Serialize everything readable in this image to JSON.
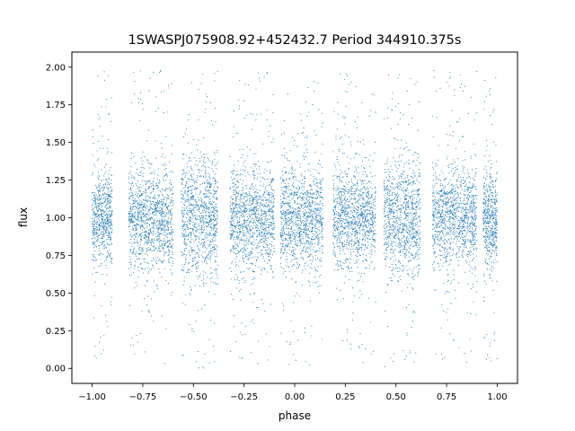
{
  "chart_data": {
    "type": "scatter",
    "title": "1SWASPJ075908.92+452432.7 Period 344910.375s",
    "xlabel": "phase",
    "ylabel": "flux",
    "xlim": [
      -1.1,
      1.1
    ],
    "ylim": [
      -0.1,
      2.1
    ],
    "xticks": [
      -1.0,
      -0.75,
      -0.5,
      -0.25,
      0.0,
      0.25,
      0.5,
      0.75,
      1.0
    ],
    "xtick_labels": [
      "−1.00",
      "−0.75",
      "−0.50",
      "−0.25",
      "0.00",
      "0.25",
      "0.50",
      "0.75",
      "1.00"
    ],
    "yticks": [
      0.0,
      0.25,
      0.5,
      0.75,
      1.0,
      1.25,
      1.5,
      1.75,
      2.0
    ],
    "ytick_labels": [
      "0.00",
      "0.25",
      "0.50",
      "0.75",
      "1.00",
      "1.25",
      "1.50",
      "1.75",
      "2.00"
    ],
    "grid": false,
    "legend": "none",
    "marker_color": "#1f77b4",
    "series": [
      {
        "clusters": [
          {
            "x_range": [
              -1.0,
              -0.9
            ],
            "core_flux": [
              0.65,
              1.35
            ],
            "flux_extent": [
              0.03,
              1.97
            ]
          },
          {
            "x_range": [
              -0.82,
              -0.6
            ],
            "core_flux": [
              0.62,
              1.4
            ],
            "flux_extent": [
              0.02,
              1.98
            ]
          },
          {
            "x_range": [
              -0.56,
              -0.38
            ],
            "core_flux": [
              0.6,
              1.5
            ],
            "flux_extent": [
              0.0,
              1.98
            ]
          },
          {
            "x_range": [
              -0.32,
              -0.1
            ],
            "core_flux": [
              0.62,
              1.38
            ],
            "flux_extent": [
              0.02,
              1.98
            ]
          },
          {
            "x_range": [
              -0.07,
              0.14
            ],
            "core_flux": [
              0.6,
              1.4
            ],
            "flux_extent": [
              0.02,
              1.95
            ]
          },
          {
            "x_range": [
              0.19,
              0.4
            ],
            "core_flux": [
              0.62,
              1.4
            ],
            "flux_extent": [
              0.02,
              1.98
            ]
          },
          {
            "x_range": [
              0.44,
              0.62
            ],
            "core_flux": [
              0.6,
              1.5
            ],
            "flux_extent": [
              0.0,
              1.98
            ]
          },
          {
            "x_range": [
              0.68,
              0.9
            ],
            "core_flux": [
              0.62,
              1.4
            ],
            "flux_extent": [
              0.02,
              1.98
            ]
          },
          {
            "x_range": [
              0.93,
              1.0
            ],
            "core_flux": [
              0.65,
              1.35
            ],
            "flux_extent": [
              0.03,
              1.97
            ]
          }
        ],
        "mean_flux": 1.0
      }
    ]
  }
}
